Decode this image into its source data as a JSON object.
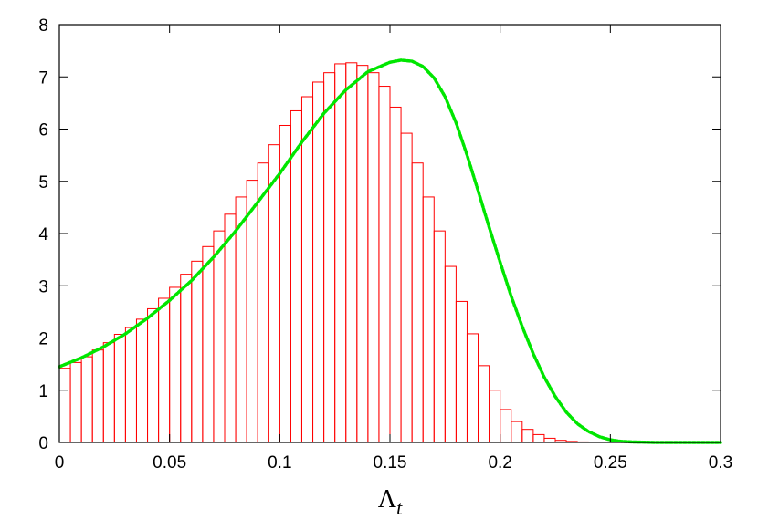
{
  "chart_data": {
    "type": "bar",
    "xlabel": "Λ",
    "xlabel_subscript": "t",
    "ylabel": "",
    "xlim": [
      0,
      0.3
    ],
    "ylim": [
      0,
      8
    ],
    "grid": false,
    "xticks": [
      {
        "value": 0,
        "label": "0"
      },
      {
        "value": 0.05,
        "label": "0.05"
      },
      {
        "value": 0.1,
        "label": "0.1"
      },
      {
        "value": 0.15,
        "label": "0.15"
      },
      {
        "value": 0.2,
        "label": "0.2"
      },
      {
        "value": 0.25,
        "label": "0.25"
      },
      {
        "value": 0.3,
        "label": "0.3"
      }
    ],
    "yticks": [
      {
        "value": 0,
        "label": "0"
      },
      {
        "value": 1,
        "label": "1"
      },
      {
        "value": 2,
        "label": "2"
      },
      {
        "value": 3,
        "label": "3"
      },
      {
        "value": 4,
        "label": "4"
      },
      {
        "value": 5,
        "label": "5"
      },
      {
        "value": 6,
        "label": "6"
      },
      {
        "value": 7,
        "label": "7"
      },
      {
        "value": 8,
        "label": "8"
      }
    ],
    "histogram": {
      "bin_width": 0.005,
      "bin_starts": [
        0,
        0.005,
        0.01,
        0.015,
        0.02,
        0.025,
        0.03,
        0.035,
        0.04,
        0.045,
        0.05,
        0.055,
        0.06,
        0.065,
        0.07,
        0.075,
        0.08,
        0.085,
        0.09,
        0.095,
        0.1,
        0.105,
        0.11,
        0.115,
        0.12,
        0.125,
        0.13,
        0.135,
        0.14,
        0.145,
        0.15,
        0.155,
        0.16,
        0.165,
        0.17,
        0.175,
        0.18,
        0.185,
        0.19,
        0.195,
        0.2,
        0.205,
        0.21,
        0.215,
        0.22,
        0.225,
        0.23,
        0.235,
        0.24,
        0.245,
        0.25,
        0.255,
        0.26,
        0.265,
        0.27,
        0.275,
        0.28,
        0.285,
        0.29,
        0.295
      ],
      "values": [
        1.42,
        1.53,
        1.64,
        1.77,
        1.91,
        2.07,
        2.2,
        2.36,
        2.56,
        2.76,
        2.97,
        3.22,
        3.47,
        3.75,
        4.05,
        4.37,
        4.7,
        5.02,
        5.35,
        5.7,
        6.07,
        6.35,
        6.62,
        6.9,
        7.08,
        7.25,
        7.27,
        7.22,
        7.08,
        6.82,
        6.42,
        5.92,
        5.35,
        4.7,
        4.05,
        3.37,
        2.7,
        2.08,
        1.47,
        1.0,
        0.63,
        0.4,
        0.25,
        0.15,
        0.08,
        0.04,
        0.02,
        0.01,
        0,
        0,
        0,
        0,
        0,
        0,
        0,
        0,
        0,
        0,
        0,
        0
      ],
      "color": "#ff0000"
    },
    "fit_curve": {
      "color": "#00e600",
      "style": "dotted",
      "x": [
        0,
        0.01,
        0.02,
        0.03,
        0.04,
        0.05,
        0.06,
        0.07,
        0.08,
        0.09,
        0.1,
        0.11,
        0.12,
        0.13,
        0.14,
        0.15,
        0.155,
        0.16,
        0.165,
        0.17,
        0.175,
        0.18,
        0.185,
        0.19,
        0.195,
        0.2,
        0.205,
        0.21,
        0.215,
        0.22,
        0.225,
        0.23,
        0.235,
        0.24,
        0.245,
        0.25,
        0.255,
        0.26,
        0.27,
        0.28,
        0.29,
        0.3
      ],
      "y": [
        1.45,
        1.62,
        1.83,
        2.08,
        2.38,
        2.72,
        3.1,
        3.55,
        4.05,
        4.6,
        5.15,
        5.75,
        6.3,
        6.75,
        7.1,
        7.28,
        7.32,
        7.3,
        7.2,
        6.98,
        6.62,
        6.12,
        5.5,
        4.82,
        4.12,
        3.45,
        2.8,
        2.22,
        1.7,
        1.25,
        0.88,
        0.58,
        0.36,
        0.21,
        0.11,
        0.05,
        0.02,
        0.01,
        0,
        0,
        0,
        0
      ]
    }
  }
}
